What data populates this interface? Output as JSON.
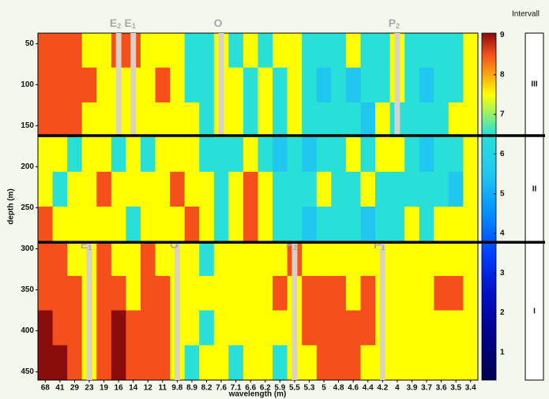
{
  "chart_data": {
    "type": "heatmap",
    "xlabel": "wavelength (m)",
    "ylabel": "depth (m)",
    "categories": [
      "68",
      "41",
      "29",
      "23",
      "19",
      "16",
      "14",
      "12",
      "11",
      "9.8",
      "8.9",
      "8.2",
      "7.6",
      "7.1",
      "6.6",
      "6.2",
      "5.9",
      "5.5",
      "5.3",
      "5",
      "4.8",
      "4.6",
      "4.4",
      "4.2",
      "4",
      "3.9",
      "3.7",
      "3.6",
      "3.5",
      "3.4"
    ],
    "depths": [
      58,
      100,
      143,
      185,
      227,
      270,
      312,
      354,
      396,
      439
    ],
    "ylim": [
      37,
      460
    ],
    "yticks": [
      50,
      100,
      150,
      200,
      250,
      300,
      350,
      400,
      450
    ],
    "values": [
      [
        8,
        8,
        8,
        7,
        7,
        8,
        8,
        7,
        7,
        7,
        6,
        6,
        7,
        6,
        7,
        6,
        7,
        7,
        6,
        6,
        6,
        7,
        6,
        6,
        7,
        6,
        6,
        6,
        6,
        7
      ],
      [
        8,
        8,
        8,
        8,
        7,
        7,
        7,
        7,
        8,
        7,
        6,
        6,
        7,
        7,
        6,
        7,
        6,
        7,
        6,
        5,
        6,
        5,
        6,
        6,
        7,
        6,
        5,
        6,
        6,
        7
      ],
      [
        8,
        8,
        8,
        7,
        7,
        7,
        7,
        7,
        7,
        7,
        7,
        6,
        7,
        7,
        6,
        7,
        6,
        7,
        6,
        6,
        6,
        6,
        5,
        7,
        6,
        6,
        6,
        6,
        7,
        7
      ],
      [
        7,
        7,
        6,
        7,
        7,
        6,
        7,
        6,
        7,
        7,
        7,
        6,
        6,
        6,
        7,
        6,
        5,
        6,
        5,
        6,
        6,
        7,
        6,
        7,
        7,
        6,
        5,
        6,
        6,
        7
      ],
      [
        7,
        6,
        7,
        7,
        8,
        7,
        7,
        7,
        7,
        8,
        7,
        7,
        6,
        7,
        8,
        7,
        6,
        6,
        6,
        7,
        6,
        6,
        7,
        6,
        6,
        6,
        6,
        6,
        5,
        7
      ],
      [
        8,
        7,
        7,
        7,
        7,
        7,
        6,
        7,
        7,
        7,
        8,
        7,
        6,
        7,
        8,
        7,
        6,
        6,
        5,
        6,
        6,
        6,
        5,
        6,
        6,
        7,
        6,
        7,
        7,
        7
      ],
      [
        8,
        8,
        7,
        7,
        8,
        7,
        7,
        8,
        7,
        7,
        7,
        6,
        7,
        7,
        7,
        7,
        7,
        8,
        7,
        7,
        7,
        7,
        7,
        7,
        7,
        7,
        7,
        7,
        7,
        7
      ],
      [
        8,
        8,
        8,
        7,
        8,
        8,
        7,
        8,
        8,
        7,
        7,
        7,
        7,
        7,
        7,
        7,
        8,
        7,
        8,
        8,
        8,
        7,
        8,
        7,
        7,
        7,
        7,
        8,
        8,
        7
      ],
      [
        9,
        8,
        8,
        7,
        8,
        9,
        8,
        8,
        8,
        7,
        7,
        6,
        7,
        7,
        7,
        7,
        7,
        7,
        8,
        8,
        8,
        8,
        8,
        7,
        7,
        7,
        7,
        7,
        7,
        7
      ],
      [
        9,
        9,
        8,
        7,
        8,
        9,
        8,
        8,
        8,
        7,
        6,
        7,
        7,
        6,
        7,
        7,
        6,
        7,
        7,
        8,
        8,
        8,
        7,
        7,
        7,
        7,
        7,
        7,
        7,
        7
      ]
    ],
    "level_colors": [
      "#00005a",
      "#000090",
      "#0010c8",
      "#0040ff",
      "#0090ff",
      "#20c8f0",
      "#28e0d8",
      "#ffff00",
      "#f5501c",
      "#8a0c0c"
    ],
    "clim": [
      0.3,
      9.05
    ],
    "cticks": [
      1,
      2,
      3,
      4,
      5,
      6,
      7,
      8,
      9
    ],
    "legend_title": "Intervall",
    "intervals": [
      {
        "label": "III",
        "range": [
          37,
          162
        ]
      },
      {
        "label": "II",
        "range": [
          162,
          292
        ]
      },
      {
        "label": "I",
        "range": [
          292,
          460
        ]
      }
    ],
    "annotations": [
      {
        "text": "E",
        "sub": "2",
        "at": "16",
        "span": [
          37,
          162
        ]
      },
      {
        "text": "E",
        "sub": "1",
        "at": "14",
        "span": [
          37,
          162
        ]
      },
      {
        "text": "O",
        "at": "7.6",
        "span": [
          37,
          162
        ]
      },
      {
        "text": "P",
        "sub": "2",
        "at": "4",
        "span": [
          37,
          162
        ]
      },
      {
        "text": "E",
        "sub": "1",
        "at": "23",
        "span": [
          292,
          460
        ]
      },
      {
        "text": "O",
        "at": "9.8",
        "span": [
          292,
          460
        ]
      },
      {
        "text": "P",
        "sub": "2",
        "at": "5.5",
        "span": [
          292,
          460
        ]
      },
      {
        "text": "P",
        "sub": "1",
        "at": "4.2",
        "span": [
          292,
          460
        ]
      }
    ]
  }
}
